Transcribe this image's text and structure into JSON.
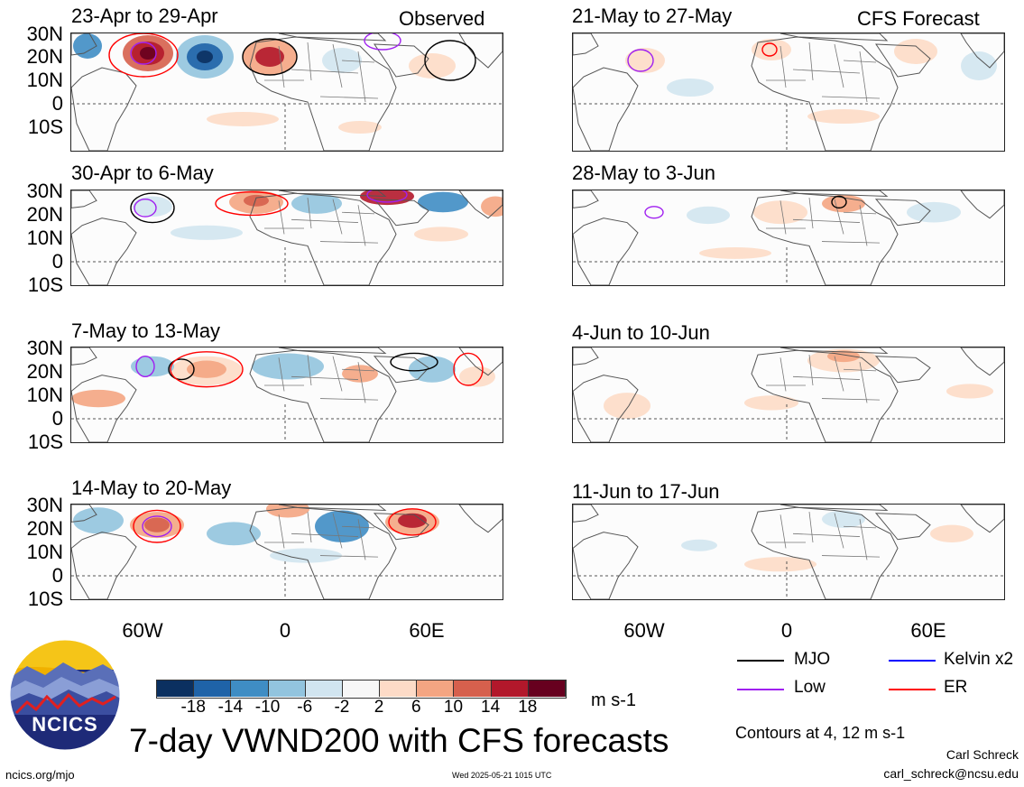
{
  "panels": [
    {
      "id": "obs1",
      "date": "23-Apr to 29-Apr",
      "tag": "Observed"
    },
    {
      "id": "obs2",
      "date": "30-Apr to 6-May",
      "tag": ""
    },
    {
      "id": "obs3",
      "date": "7-May to 13-May",
      "tag": ""
    },
    {
      "id": "obs4",
      "date": "14-May to 20-May",
      "tag": ""
    },
    {
      "id": "fc1",
      "date": "21-May to 27-May",
      "tag": "CFS Forecast"
    },
    {
      "id": "fc2",
      "date": "28-May to 3-Jun",
      "tag": ""
    },
    {
      "id": "fc3",
      "date": "4-Jun to 10-Jun",
      "tag": ""
    },
    {
      "id": "fc4",
      "date": "11-Jun to 17-Jun",
      "tag": ""
    }
  ],
  "lat_labels": [
    "30N",
    "20N",
    "10N",
    "0",
    "10S"
  ],
  "lon_labels": [
    "60W",
    "0",
    "60E"
  ],
  "colorbar": {
    "colors": [
      "#0b3060",
      "#1f63a8",
      "#3f8dc4",
      "#92c4de",
      "#d1e5f0",
      "#f7f7f7",
      "#fddbc7",
      "#f4a582",
      "#d6604d",
      "#b2182b",
      "#67001f"
    ],
    "labels": [
      "-18",
      "-14",
      "-10",
      "-6",
      "-2",
      "2",
      "6",
      "10",
      "14",
      "18"
    ],
    "units": "m s-1"
  },
  "legend": [
    {
      "label": "MJO",
      "color": "#000000"
    },
    {
      "label": "Kelvin x2",
      "color": "#0000ff"
    },
    {
      "label": "Low",
      "color": "#a020f0"
    },
    {
      "label": "ER",
      "color": "#ff0000"
    }
  ],
  "title": "7-day VWND200 with CFS forecasts",
  "contour_note": "Contours at 4, 12 m s-1",
  "author": "Carl Schreck",
  "email": "carl_schreck@ncsu.edu",
  "site": "ncics.org/mjo",
  "timestamp": "Wed 2025-05-21 1015 UTC",
  "logo_text": "NCICS"
}
